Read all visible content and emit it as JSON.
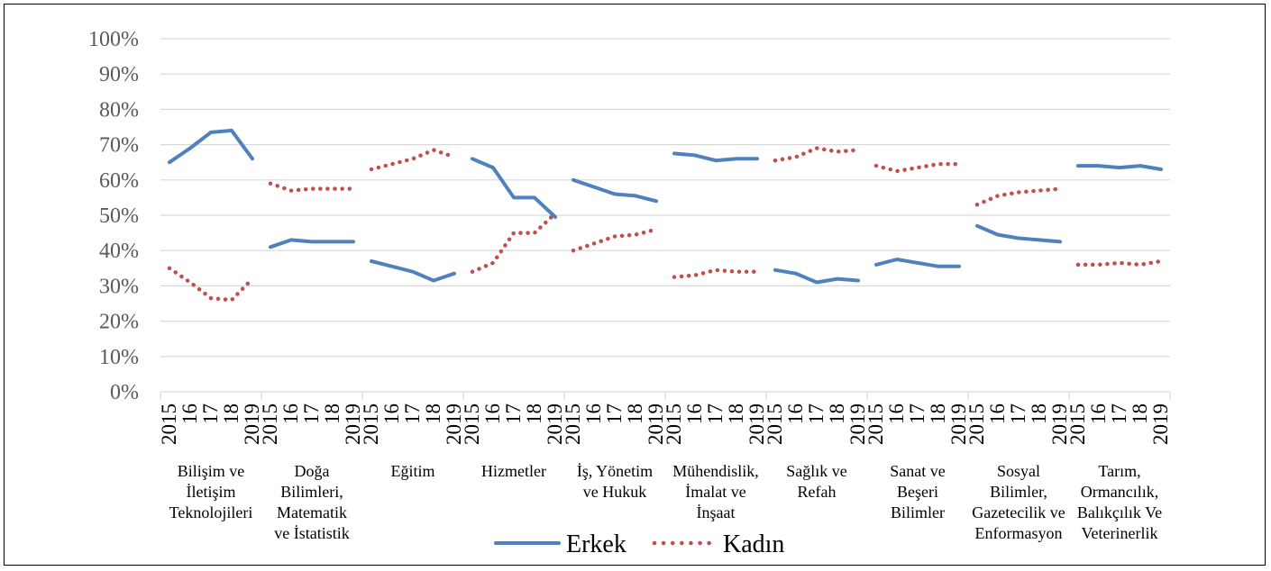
{
  "chart_data": {
    "type": "line",
    "title": "",
    "xlabel": "",
    "ylabel": "",
    "ylim": [
      0,
      100
    ],
    "yticks": [
      "0%",
      "10%",
      "20%",
      "30%",
      "40%",
      "50%",
      "60%",
      "70%",
      "80%",
      "90%",
      "100%"
    ],
    "years": [
      "2015",
      "2016",
      "2017",
      "2018",
      "2019"
    ],
    "year_tick_labels": [
      "2015",
      "16",
      "17",
      "18",
      "2019"
    ],
    "groups": [
      {
        "label": [
          "Bilişim ve",
          "İletişim",
          "Teknolojileri"
        ],
        "erkek": [
          65,
          69,
          73.5,
          74,
          66
        ],
        "kadin": [
          35,
          31,
          26.5,
          26,
          32
        ]
      },
      {
        "label": [
          "Doğa",
          "Bilimleri,",
          "Matematik",
          "ve İstatistik"
        ],
        "erkek": [
          41,
          43,
          42.5,
          42.5,
          42.5
        ],
        "kadin": [
          59,
          57,
          57.5,
          57.5,
          57.5
        ]
      },
      {
        "label": [
          "Eğitim"
        ],
        "erkek": [
          37,
          35.5,
          34,
          31.5,
          33.5
        ],
        "kadin": [
          63,
          64.5,
          66,
          68.5,
          66.5
        ]
      },
      {
        "label": [
          "Hizmetler"
        ],
        "erkek": [
          66,
          63.5,
          55,
          55,
          49.5
        ],
        "kadin": [
          34,
          36.5,
          45,
          45,
          50.5
        ]
      },
      {
        "label": [
          "İş, Yönetim",
          "ve Hukuk"
        ],
        "erkek": [
          60,
          58,
          56,
          55.5,
          54
        ],
        "kadin": [
          40,
          42,
          44,
          44.5,
          46
        ]
      },
      {
        "label": [
          "Mühendislik,",
          "İmalat ve",
          "İnşaat"
        ],
        "erkek": [
          67.5,
          67,
          65.5,
          66,
          66
        ],
        "kadin": [
          32.5,
          33,
          34.5,
          34,
          34
        ]
      },
      {
        "label": [
          "Sağlık ve",
          "Refah"
        ],
        "erkek": [
          34.5,
          33.5,
          31,
          32,
          31.5
        ],
        "kadin": [
          65.5,
          66.5,
          69,
          68,
          68.5
        ]
      },
      {
        "label": [
          "Sanat ve",
          "Beşeri",
          "Bilimler"
        ],
        "erkek": [
          36,
          37.5,
          36.5,
          35.5,
          35.5
        ],
        "kadin": [
          64,
          62.5,
          63.5,
          64.5,
          64.5
        ]
      },
      {
        "label": [
          "Sosyal",
          "Bilimler,",
          "Gazetecilik ve",
          "Enformasyon"
        ],
        "erkek": [
          47,
          44.5,
          43.5,
          43,
          42.5
        ],
        "kadin": [
          53,
          55.5,
          56.5,
          57,
          57.5
        ]
      },
      {
        "label": [
          "Tarım,",
          "Ormancılık,",
          "Balıkçılık Ve",
          "Veterinerlik"
        ],
        "erkek": [
          64,
          64,
          63.5,
          64,
          63
        ],
        "kadin": [
          36,
          36,
          36.5,
          36,
          37
        ]
      }
    ],
    "series": [
      {
        "name": "Erkek",
        "key": "erkek",
        "color": "#4f81bd",
        "style": "solid"
      },
      {
        "name": "Kadın",
        "key": "kadin",
        "color": "#c0504d",
        "style": "dotted"
      }
    ],
    "grid": true,
    "legend_position": "bottom"
  }
}
